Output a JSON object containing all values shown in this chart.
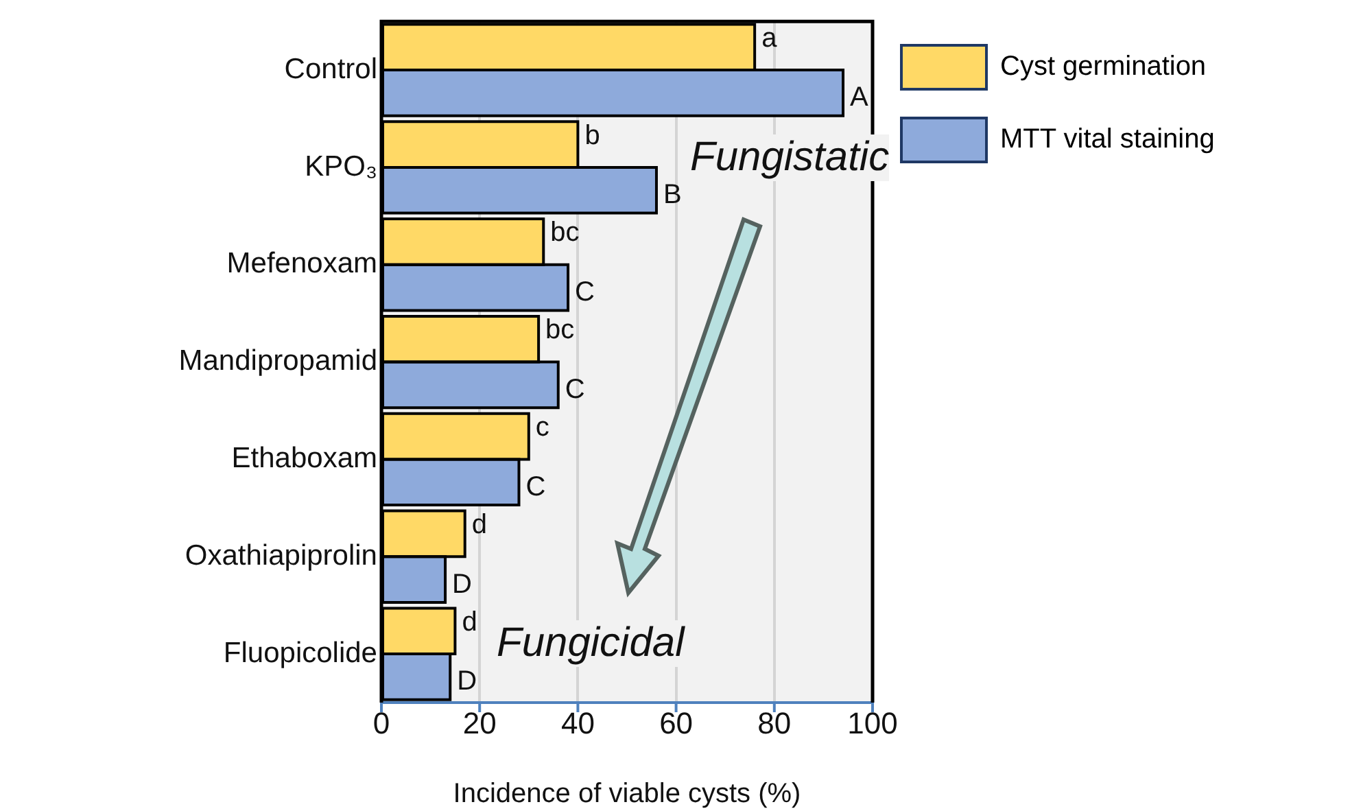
{
  "chart_data": {
    "type": "bar",
    "orientation": "horizontal",
    "xlabel": "Incidence of viable cysts (%)",
    "categories": [
      "Control",
      "KPO₃",
      "Mefenoxam",
      "Mandipropamid",
      "Ethaboxam",
      "Oxathiapiprolin",
      "Fluopicolide"
    ],
    "series": [
      {
        "name": "Cyst germination",
        "color": "#ffd966",
        "values": [
          76,
          40,
          33,
          32,
          30,
          17,
          15
        ],
        "value_labels": [
          "a",
          "b",
          "bc",
          "bc",
          "c",
          "d",
          "d"
        ]
      },
      {
        "name": "MTT vital staining",
        "color": "#8eaadb",
        "values": [
          94,
          56,
          38,
          36,
          28,
          13,
          14
        ],
        "value_labels": [
          "A",
          "B",
          "C",
          "C",
          "C",
          "D",
          "D"
        ]
      }
    ],
    "xlim": [
      0,
      100
    ],
    "xticks": [
      0,
      20,
      40,
      60,
      80,
      100
    ],
    "grid": "x",
    "legend": "top right",
    "annotations": [
      "Fungistatic",
      "Fungicidal"
    ]
  }
}
